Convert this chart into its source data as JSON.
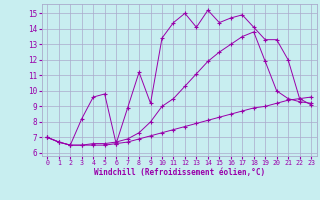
{
  "xlabel": "Windchill (Refroidissement éolien,°C)",
  "bg_color": "#c8eef0",
  "line_color": "#9900aa",
  "grid_color": "#aaaacc",
  "xlim": [
    -0.5,
    23.5
  ],
  "ylim": [
    5.8,
    15.6
  ],
  "yticks": [
    6,
    7,
    8,
    9,
    10,
    11,
    12,
    13,
    14,
    15
  ],
  "xticks": [
    0,
    1,
    2,
    3,
    4,
    5,
    6,
    7,
    8,
    9,
    10,
    11,
    12,
    13,
    14,
    15,
    16,
    17,
    18,
    19,
    20,
    21,
    22,
    23
  ],
  "line1_x": [
    0,
    1,
    2,
    3,
    4,
    5,
    6,
    7,
    8,
    9,
    10,
    11,
    12,
    13,
    14,
    15,
    16,
    17,
    18,
    19,
    20,
    21,
    22,
    23
  ],
  "line1_y": [
    7.0,
    6.7,
    6.5,
    6.5,
    6.5,
    6.5,
    6.6,
    6.7,
    6.9,
    7.1,
    7.3,
    7.5,
    7.7,
    7.9,
    8.1,
    8.3,
    8.5,
    8.7,
    8.9,
    9.0,
    9.2,
    9.4,
    9.5,
    9.6
  ],
  "line2_x": [
    0,
    1,
    2,
    3,
    4,
    5,
    6,
    7,
    8,
    9,
    10,
    11,
    12,
    13,
    14,
    15,
    16,
    17,
    18,
    19,
    20,
    21,
    22,
    23
  ],
  "line2_y": [
    7.0,
    6.7,
    6.5,
    6.5,
    6.6,
    6.6,
    6.7,
    6.9,
    7.3,
    8.0,
    9.0,
    9.5,
    10.3,
    11.1,
    11.9,
    12.5,
    13.0,
    13.5,
    13.8,
    11.9,
    10.0,
    9.5,
    9.3,
    9.2
  ],
  "line3_x": [
    0,
    1,
    2,
    3,
    4,
    5,
    6,
    7,
    8,
    9,
    10,
    11,
    12,
    13,
    14,
    15,
    16,
    17,
    18,
    19,
    20,
    21,
    22,
    23
  ],
  "line3_y": [
    7.0,
    6.7,
    6.5,
    8.2,
    9.6,
    9.8,
    6.6,
    8.9,
    11.2,
    9.2,
    13.4,
    14.4,
    15.0,
    14.1,
    15.2,
    14.4,
    14.7,
    14.9,
    14.1,
    13.3,
    13.3,
    12.0,
    9.5,
    9.1
  ]
}
